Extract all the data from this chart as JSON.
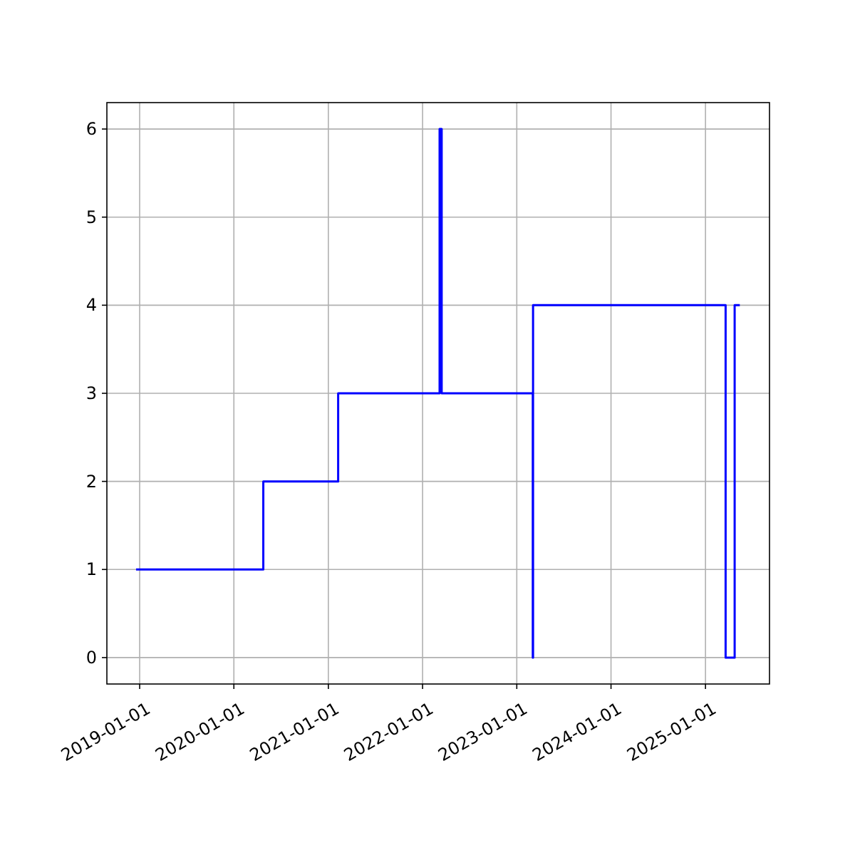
{
  "chart_data": {
    "type": "step",
    "x": [
      "2018-12-18",
      "2020-04-24",
      "2021-02-08",
      "2022-03-08",
      "2022-03-16",
      "2023-03-04",
      "2023-03-05",
      "2025-03-20",
      "2025-04-24",
      "2025-05-14"
    ],
    "series": [
      {
        "color": "#0000ff",
        "values": [
          1,
          2,
          3,
          6,
          3,
          0,
          4,
          0,
          4,
          4
        ]
      }
    ],
    "xlim": [
      "2018-08-27",
      "2025-09-06"
    ],
    "xticks": [
      {
        "value": "2019-01-01",
        "label": "2019-01-01"
      },
      {
        "value": "2020-01-01",
        "label": "2020-01-01"
      },
      {
        "value": "2021-01-01",
        "label": "2021-01-01"
      },
      {
        "value": "2022-01-01",
        "label": "2022-01-01"
      },
      {
        "value": "2023-01-01",
        "label": "2023-01-01"
      },
      {
        "value": "2024-01-01",
        "label": "2024-01-01"
      },
      {
        "value": "2025-01-01",
        "label": "2025-01-01"
      }
    ],
    "ylim": [
      -0.3,
      6.3
    ],
    "yticks": [
      0,
      1,
      2,
      3,
      4,
      5,
      6
    ],
    "grid": true
  }
}
